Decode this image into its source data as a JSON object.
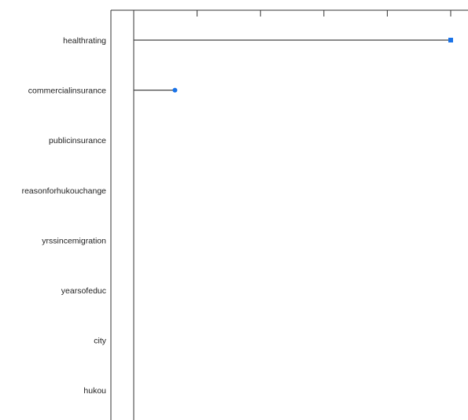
{
  "chart_data": {
    "type": "lollipop",
    "orientation": "horizontal",
    "categories": [
      "healthrating",
      "commercialinsurance",
      "publicinsurance",
      "reasonforhukouchange",
      "yrssincemigration",
      "yearsofeduc",
      "city",
      "hukou"
    ],
    "values": [
      1.0,
      0.13,
      0,
      0,
      0,
      0,
      0,
      0
    ],
    "xlim": [
      0,
      1
    ],
    "x_ticks": [
      0,
      0.2,
      0.4,
      0.6,
      0.8,
      1.0
    ],
    "title": "",
    "xlabel": "",
    "ylabel": "",
    "grid": false,
    "colors": {
      "stem": "#444444",
      "marker": "#1a73e8",
      "axis": "#333333"
    }
  }
}
